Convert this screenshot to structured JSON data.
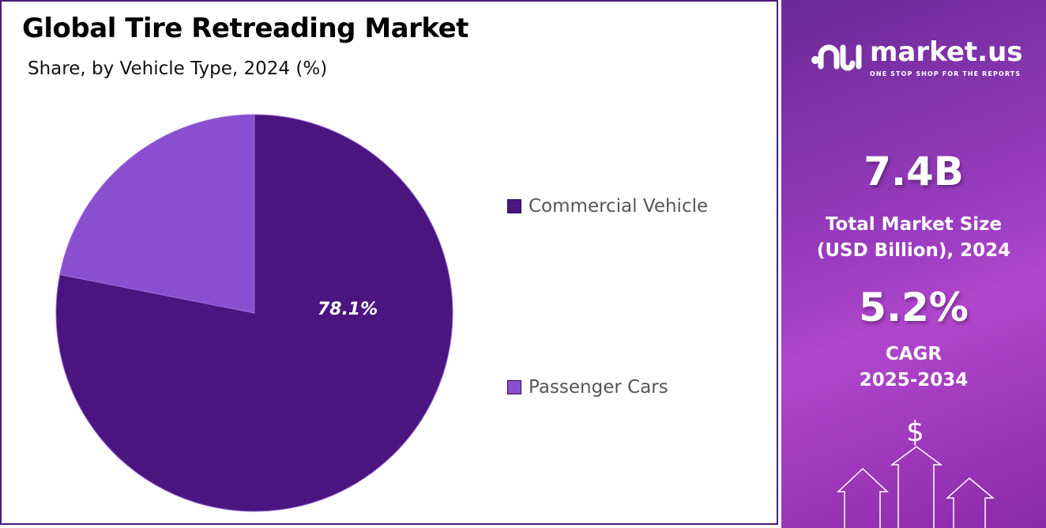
{
  "chart_data": {
    "type": "pie",
    "title": "Global Tire Retreading Market",
    "subtitle": "Share, by Vehicle Type, 2024 (%)",
    "slices": [
      {
        "label": "Commercial Vehicle",
        "value": 78.1,
        "color": "#4b1580",
        "data_label": "78.1%"
      },
      {
        "label": "Passenger Cars",
        "value": 21.9,
        "color": "#8a4fd0"
      }
    ],
    "legend_placement": "right",
    "start_angle": "top",
    "direction": "clockwise"
  },
  "sidebar": {
    "brand": "market.us",
    "tagline": "ONE STOP SHOP FOR THE REPORTS",
    "market_size_value": "7.4B",
    "market_size_label_1": "Total Market Size",
    "market_size_label_2": "(USD Billion), 2024",
    "cagr_value": "5.2%",
    "cagr_label_1": "CAGR",
    "cagr_label_2": "2025-2034",
    "dollar_icon": "dollar-sign-icon",
    "arrows_icon": "growth-arrows-icon"
  }
}
